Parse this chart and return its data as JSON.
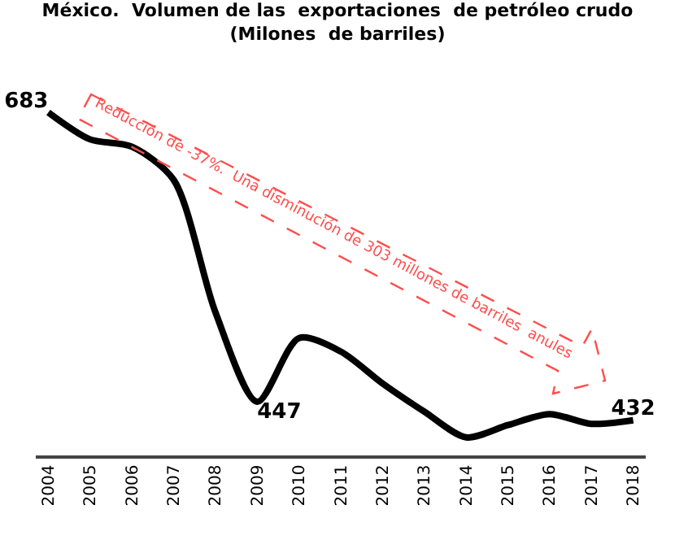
{
  "chart_data": {
    "type": "line",
    "title": "México.  Volumen de las  exportaciones  de petróleo crudo\n(Milones  de barriles)",
    "categories": [
      "2004",
      "2005",
      "2006",
      "2007",
      "2008",
      "2009",
      "2010",
      "2011",
      "2012",
      "2013",
      "2014",
      "2015",
      "2016",
      "2017",
      "2018"
    ],
    "series": [
      {
        "color": "#000000",
        "values": [
          683,
          661,
          655,
          628,
          520,
          447,
          499,
          488,
          462,
          439,
          418,
          428,
          437,
          429,
          432
        ],
        "value_labels": [
          "683",
          null,
          null,
          null,
          null,
          "447",
          null,
          null,
          null,
          null,
          null,
          null,
          null,
          null,
          "432"
        ]
      }
    ],
    "tick_labels": "x",
    "marker": "none",
    "annotations": [
      "Reducción de -37%.  Una disminución de 303 millones de barriles  anules"
    ]
  }
}
